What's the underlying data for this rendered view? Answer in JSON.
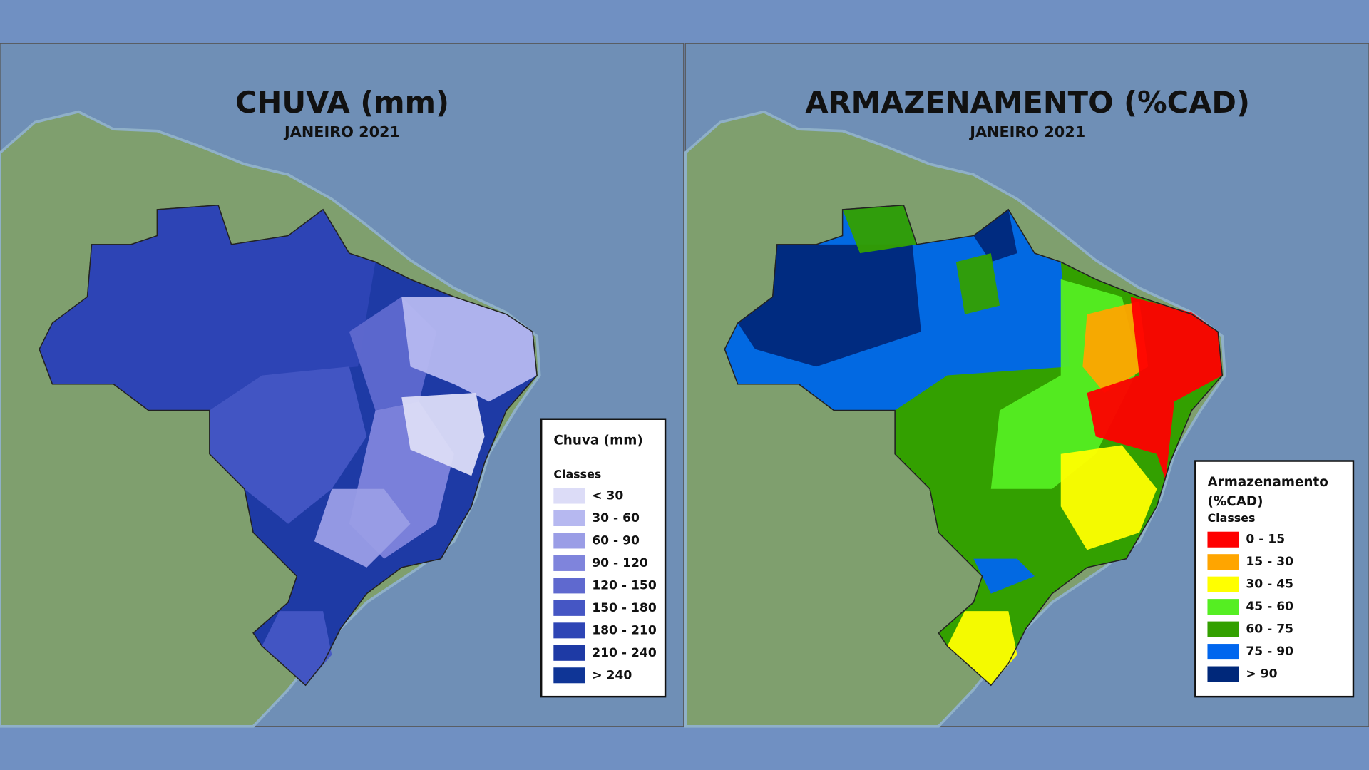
{
  "maps": [
    {
      "title": "CHUVA (mm)",
      "subtitle": "JANEIRO 2021",
      "legend": {
        "title": [
          "Chuva (mm)"
        ],
        "subtitle": "Classes",
        "classes": [
          {
            "label": "< 30",
            "color": "#dcdcf7"
          },
          {
            "label": "30 - 60",
            "color": "#b6b8f0"
          },
          {
            "label": "60 - 90",
            "color": "#9a9de6"
          },
          {
            "label": "90 - 120",
            "color": "#7f84dc"
          },
          {
            "label": "120 - 150",
            "color": "#5f69cf"
          },
          {
            "label": "150 - 180",
            "color": "#4556c4"
          },
          {
            "label": "180 - 210",
            "color": "#2e45b5"
          },
          {
            "label": "210 - 240",
            "color": "#1e3aa5"
          },
          {
            "label": "> 240",
            "color": "#0f3596"
          }
        ]
      }
    },
    {
      "title": "ARMAZENAMENTO (%CAD)",
      "subtitle": "JANEIRO 2021",
      "legend": {
        "title": [
          "Armazenamento",
          "(%CAD)"
        ],
        "subtitle": "Classes",
        "classes": [
          {
            "label": "0 - 15",
            "color": "#ff0000"
          },
          {
            "label": "15 - 30",
            "color": "#ffa500"
          },
          {
            "label": "30 - 45",
            "color": "#ffff00"
          },
          {
            "label": "45 - 60",
            "color": "#55ee22"
          },
          {
            "label": "60 - 75",
            "color": "#33a000"
          },
          {
            "label": "75 - 90",
            "color": "#0066ee"
          },
          {
            "label": "> 90",
            "color": "#00287a"
          }
        ]
      }
    }
  ]
}
